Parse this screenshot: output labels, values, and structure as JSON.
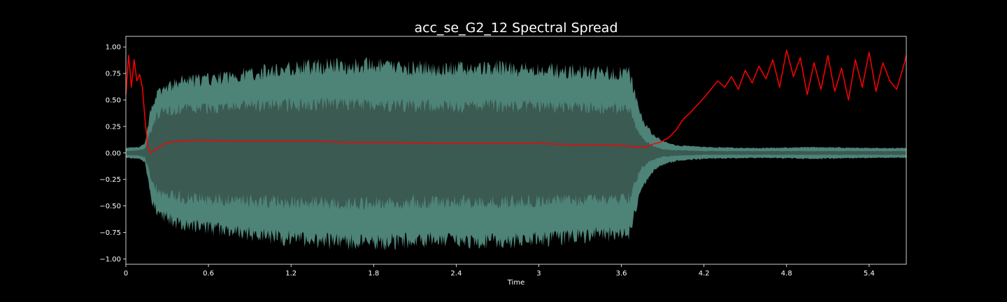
{
  "chart_data": {
    "type": "line",
    "title": "acc_se_G2_12 Spectral Spread",
    "xlabel": "Time",
    "ylabel": "",
    "xlim": [
      0,
      5.67
    ],
    "ylim": [
      -1.05,
      1.1
    ],
    "grid": false,
    "xticks": [
      {
        "value": 0,
        "label": "0"
      },
      {
        "value": 0.6,
        "label": "0.6"
      },
      {
        "value": 1.2,
        "label": "1.2"
      },
      {
        "value": 1.8,
        "label": "1.8"
      },
      {
        "value": 2.4,
        "label": "2.4"
      },
      {
        "value": 3.0,
        "label": "3"
      },
      {
        "value": 3.6,
        "label": "3.6"
      },
      {
        "value": 4.2,
        "label": "4.2"
      },
      {
        "value": 4.8,
        "label": "4.8"
      },
      {
        "value": 5.4,
        "label": "5.4"
      }
    ],
    "yticks": [
      {
        "value": 1.0,
        "label": "1.00"
      },
      {
        "value": 0.75,
        "label": "0.75"
      },
      {
        "value": 0.5,
        "label": "0.50"
      },
      {
        "value": 0.25,
        "label": "0.25"
      },
      {
        "value": 0.0,
        "label": "0.00"
      },
      {
        "value": -0.25,
        "label": "−0.25"
      },
      {
        "value": -0.5,
        "label": "−0.50"
      },
      {
        "value": -0.75,
        "label": "−0.75"
      },
      {
        "value": -1.0,
        "label": "−1.00"
      }
    ],
    "waveform": {
      "color": "#5c9a8c",
      "inner_color": "#3a5a52",
      "envelope": {
        "x": [
          0.0,
          0.1,
          0.14,
          0.18,
          0.22,
          0.28,
          0.4,
          0.6,
          0.9,
          1.2,
          1.5,
          1.8,
          2.1,
          2.4,
          2.7,
          3.0,
          3.3,
          3.55,
          3.66,
          3.7,
          3.75,
          3.82,
          3.9,
          4.0,
          4.2,
          4.6,
          5.0,
          5.4,
          5.67
        ],
        "upper": [
          0.05,
          0.06,
          0.1,
          0.45,
          0.6,
          0.66,
          0.74,
          0.76,
          0.82,
          0.88,
          0.91,
          0.9,
          0.88,
          0.87,
          0.88,
          0.86,
          0.84,
          0.83,
          0.82,
          0.6,
          0.35,
          0.2,
          0.12,
          0.08,
          0.06,
          0.05,
          0.06,
          0.05,
          0.05
        ],
        "lower": [
          -0.05,
          -0.06,
          -0.1,
          -0.45,
          -0.6,
          -0.66,
          -0.75,
          -0.78,
          -0.84,
          -0.89,
          -0.92,
          -0.93,
          -0.91,
          -0.9,
          -0.92,
          -0.9,
          -0.86,
          -0.84,
          -0.82,
          -0.6,
          -0.35,
          -0.2,
          -0.12,
          -0.08,
          -0.06,
          -0.05,
          -0.06,
          -0.05,
          -0.05
        ],
        "inner_upper": [
          0.02,
          0.03,
          0.05,
          0.25,
          0.38,
          0.45,
          0.47,
          0.48,
          0.5,
          0.52,
          0.53,
          0.52,
          0.51,
          0.5,
          0.51,
          0.5,
          0.49,
          0.48,
          0.47,
          0.3,
          0.15,
          0.08,
          0.04,
          0.03,
          0.02,
          0.02,
          0.02,
          0.02,
          0.02
        ],
        "inner_lower": [
          -0.02,
          -0.03,
          -0.05,
          -0.25,
          -0.38,
          -0.45,
          -0.48,
          -0.5,
          -0.52,
          -0.53,
          -0.54,
          -0.54,
          -0.53,
          -0.52,
          -0.53,
          -0.52,
          -0.5,
          -0.49,
          -0.48,
          -0.3,
          -0.15,
          -0.08,
          -0.04,
          -0.03,
          -0.02,
          -0.02,
          -0.02,
          -0.02,
          -0.02
        ]
      }
    },
    "series": [
      {
        "color": "#ff0000",
        "x": [
          0.0,
          0.02,
          0.04,
          0.06,
          0.08,
          0.1,
          0.12,
          0.14,
          0.16,
          0.18,
          0.2,
          0.25,
          0.3,
          0.4,
          0.5,
          0.6,
          0.8,
          1.0,
          1.2,
          1.4,
          1.6,
          1.8,
          2.0,
          2.2,
          2.4,
          2.6,
          2.8,
          3.0,
          3.2,
          3.4,
          3.6,
          3.7,
          3.76,
          3.82,
          3.88,
          3.94,
          4.0,
          4.05,
          4.1,
          4.15,
          4.2,
          4.25,
          4.3,
          4.35,
          4.4,
          4.45,
          4.5,
          4.55,
          4.6,
          4.65,
          4.7,
          4.75,
          4.8,
          4.85,
          4.9,
          4.95,
          5.0,
          5.05,
          5.1,
          5.15,
          5.2,
          5.25,
          5.3,
          5.35,
          5.4,
          5.45,
          5.5,
          5.55,
          5.6,
          5.65,
          5.67
        ],
        "y": [
          0.55,
          0.92,
          0.62,
          0.88,
          0.68,
          0.74,
          0.62,
          0.3,
          0.05,
          0.0,
          0.02,
          0.06,
          0.1,
          0.11,
          0.12,
          0.12,
          0.11,
          0.11,
          0.11,
          0.11,
          0.1,
          0.1,
          0.1,
          0.09,
          0.09,
          0.09,
          0.09,
          0.09,
          0.08,
          0.08,
          0.07,
          0.06,
          0.05,
          0.08,
          0.1,
          0.14,
          0.22,
          0.32,
          0.38,
          0.45,
          0.52,
          0.6,
          0.68,
          0.62,
          0.72,
          0.6,
          0.78,
          0.66,
          0.82,
          0.7,
          0.88,
          0.62,
          0.97,
          0.72,
          0.9,
          0.55,
          0.85,
          0.6,
          0.92,
          0.58,
          0.8,
          0.5,
          0.88,
          0.62,
          0.95,
          0.58,
          0.85,
          0.68,
          0.6,
          0.82,
          0.92
        ]
      }
    ]
  }
}
